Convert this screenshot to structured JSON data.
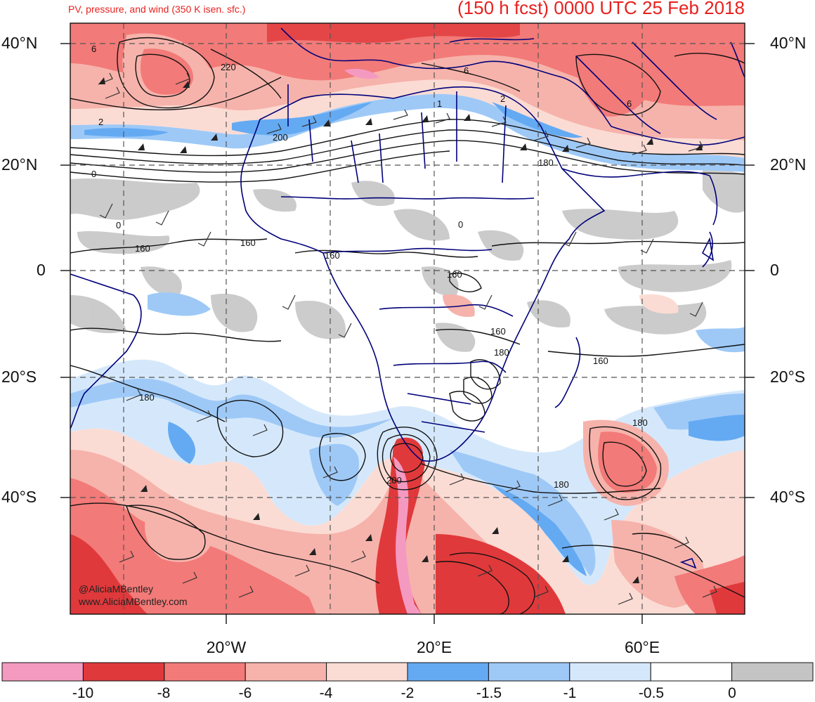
{
  "header": {
    "field_title": "PV, pressure, and wind (350 K isen. sfc.)",
    "forecast_title": "(150 h fcst) 0000 UTC 25 Feb 2018"
  },
  "axes": {
    "lat_left": [
      "40°N",
      "20°N",
      "0",
      "20°S",
      "40°S"
    ],
    "lat_right": [
      "40°N",
      "20°N",
      "0",
      "20°S",
      "40°S"
    ],
    "lon_bottom": [
      "20°W",
      "20°E",
      "60°E"
    ]
  },
  "contour_labels": [
    "6",
    "220",
    "2",
    "200",
    "0",
    "0",
    "160",
    "160",
    "160",
    "160",
    "160",
    "180",
    "180",
    "160",
    "180",
    "180",
    "200",
    "1",
    "2",
    "6",
    "6",
    "180",
    "0"
  ],
  "credits": {
    "handle": "@AliciaMBentley",
    "site": "www.AliciaMBentley.com"
  },
  "colorbar": {
    "labels": [
      "-10",
      "-8",
      "-6",
      "-4",
      "-2",
      "-1.5",
      "-1",
      "-0.5",
      "0"
    ],
    "colors": [
      "#f49ac1",
      "#e0393b",
      "#f27a78",
      "#f6b3ab",
      "#fbdcd4",
      "#64aaf3",
      "#9ec9f7",
      "#d5e8fb",
      "#ffffff",
      "#c4c4c4"
    ]
  },
  "style": {
    "title_color": "#e8211f",
    "border_color": "#00007a",
    "grid_color": "#555555"
  }
}
